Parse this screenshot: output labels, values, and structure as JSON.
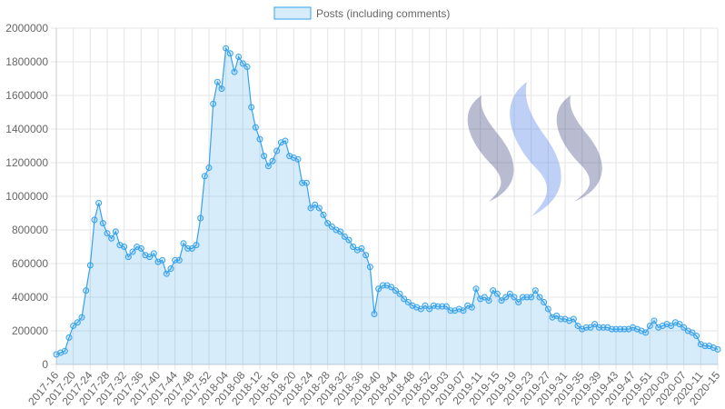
{
  "chart_data": {
    "type": "line",
    "fill": true,
    "series": [
      {
        "name": "Posts (including comments)",
        "color": "#36a2eb",
        "values": [
          60000,
          70000,
          80000,
          160000,
          230000,
          250000,
          280000,
          440000,
          590000,
          860000,
          960000,
          840000,
          780000,
          750000,
          790000,
          710000,
          700000,
          640000,
          670000,
          700000,
          690000,
          650000,
          640000,
          660000,
          610000,
          620000,
          540000,
          570000,
          620000,
          620000,
          720000,
          690000,
          690000,
          710000,
          870000,
          1120000,
          1170000,
          1550000,
          1680000,
          1640000,
          1880000,
          1850000,
          1740000,
          1830000,
          1790000,
          1770000,
          1530000,
          1410000,
          1340000,
          1240000,
          1180000,
          1210000,
          1270000,
          1320000,
          1330000,
          1240000,
          1230000,
          1220000,
          1080000,
          1080000,
          930000,
          950000,
          930000,
          890000,
          840000,
          820000,
          800000,
          790000,
          760000,
          740000,
          700000,
          680000,
          690000,
          650000,
          580000,
          300000,
          450000,
          470000,
          470000,
          460000,
          440000,
          420000,
          390000,
          370000,
          350000,
          340000,
          330000,
          350000,
          330000,
          350000,
          345000,
          345000,
          345000,
          320000,
          320000,
          330000,
          320000,
          350000,
          340000,
          450000,
          390000,
          400000,
          380000,
          440000,
          420000,
          380000,
          400000,
          420000,
          400000,
          370000,
          400000,
          400000,
          400000,
          440000,
          400000,
          370000,
          330000,
          280000,
          290000,
          270000,
          270000,
          260000,
          270000,
          230000,
          210000,
          220000,
          220000,
          240000,
          220000,
          220000,
          220000,
          210000,
          210000,
          210000,
          210000,
          210000,
          220000,
          210000,
          200000,
          190000,
          230000,
          260000,
          220000,
          230000,
          240000,
          230000,
          250000,
          240000,
          220000,
          200000,
          190000,
          170000,
          120000,
          110000,
          110000,
          100000,
          90000
        ]
      }
    ],
    "categories": [
      "2017-16",
      null,
      null,
      null,
      "2017-20",
      null,
      null,
      null,
      "2017-24",
      null,
      null,
      null,
      "2017-28",
      null,
      null,
      null,
      "2017-32",
      null,
      null,
      null,
      "2017-36",
      null,
      null,
      null,
      "2017-40",
      null,
      null,
      null,
      "2017-44",
      null,
      null,
      null,
      "2017-48",
      null,
      null,
      null,
      "2017-52",
      null,
      null,
      null,
      "2018-04",
      null,
      null,
      null,
      "2018-08",
      null,
      null,
      null,
      "2018-12",
      null,
      null,
      null,
      "2018-16",
      null,
      null,
      null,
      "2018-20",
      null,
      null,
      null,
      "2018-24",
      null,
      null,
      null,
      "2018-28",
      null,
      null,
      null,
      "2018-32",
      null,
      null,
      null,
      "2018-36",
      null,
      null,
      null,
      "2018-40",
      null,
      null,
      null,
      "2018-44",
      null,
      null,
      null,
      "2018-48",
      null,
      null,
      null,
      "2018-52",
      null,
      null,
      null,
      "2019-03",
      null,
      null,
      null,
      "2019-07",
      null,
      null,
      null,
      "2019-11",
      null,
      null,
      null,
      "2019-15",
      null,
      null,
      null,
      "2019-19",
      null,
      null,
      null,
      "2019-23",
      null,
      null,
      null,
      "2019-27",
      null,
      null,
      null,
      "2019-31",
      null,
      null,
      null,
      "2019-35",
      null,
      null,
      null,
      "2019-39",
      null,
      null,
      null,
      "2019-43",
      null,
      null,
      null,
      "2019-47",
      null,
      null,
      null,
      "2019-51",
      null,
      null,
      null,
      "2020-03",
      null,
      null,
      null,
      "2020-07",
      null,
      null,
      null,
      "2020-11",
      null,
      null,
      null,
      "2020-15"
    ],
    "ylim": [
      0,
      2000000
    ],
    "yticks": [
      0,
      200000,
      400000,
      600000,
      800000,
      1000000,
      1200000,
      1400000,
      1600000,
      1800000,
      2000000
    ],
    "grid": true
  }
}
